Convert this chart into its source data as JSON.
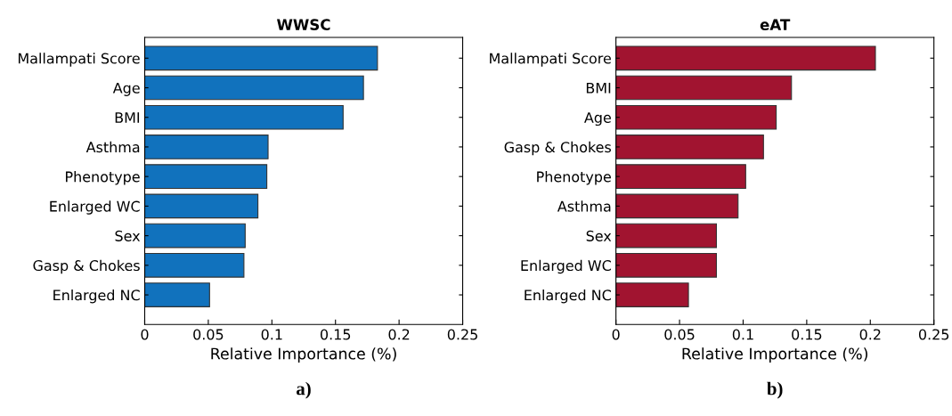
{
  "chart_data": [
    {
      "type": "bar",
      "orientation": "horizontal",
      "title": "WWSC",
      "xlabel": "Relative Importance (%)",
      "categories": [
        "Mallampati Score",
        "Age",
        "BMI",
        "Asthma",
        "Phenotype",
        "Enlarged WC",
        "Sex",
        "Gasp & Chokes",
        "Enlarged NC"
      ],
      "series": [
        {
          "color": "#1172bd",
          "values": [
            0.183,
            0.172,
            0.156,
            0.097,
            0.096,
            0.089,
            0.079,
            0.078,
            0.051
          ]
        }
      ],
      "xlim": [
        0,
        0.25
      ],
      "xticks": [
        0,
        0.05,
        0.1,
        0.15,
        0.2,
        0.25
      ],
      "grid": false,
      "legend": false,
      "annotations": [
        "a)"
      ]
    },
    {
      "type": "bar",
      "orientation": "horizontal",
      "title": "eAT",
      "xlabel": "Relative Importance (%)",
      "categories": [
        "Mallampati Score",
        "BMI",
        "Age",
        "Gasp & Chokes",
        "Phenotype",
        "Asthma",
        "Sex",
        "Enlarged WC",
        "Enlarged NC"
      ],
      "series": [
        {
          "color": "#a11430",
          "values": [
            0.204,
            0.138,
            0.126,
            0.116,
            0.102,
            0.096,
            0.079,
            0.079,
            0.057
          ]
        }
      ],
      "xlim": [
        0,
        0.25
      ],
      "xticks": [
        0,
        0.05,
        0.1,
        0.15,
        0.2,
        0.25
      ],
      "grid": false,
      "legend": false,
      "annotations": [
        "b)"
      ]
    }
  ]
}
